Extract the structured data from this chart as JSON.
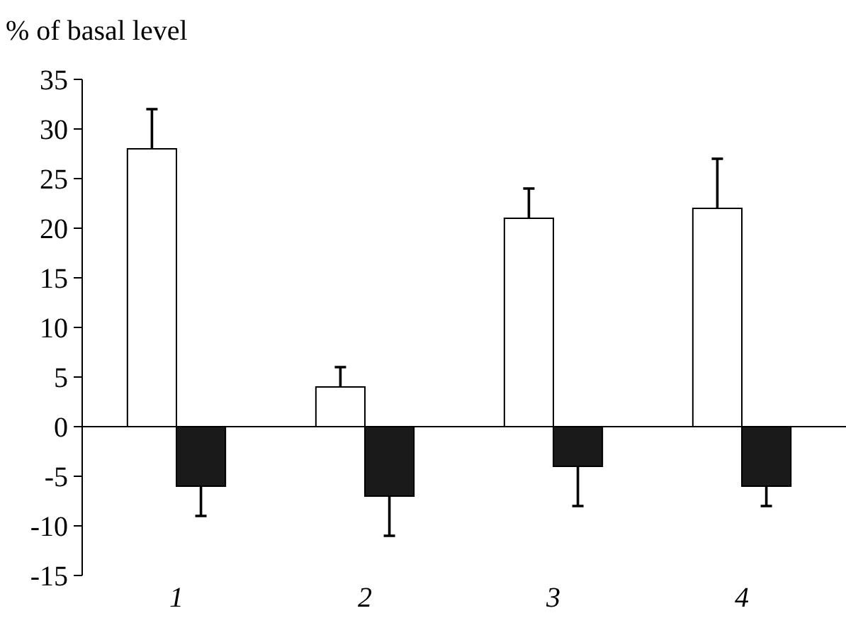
{
  "chart_data": {
    "type": "bar",
    "ylabel": "% of basal level",
    "categories": [
      "1",
      "2",
      "3",
      "4"
    ],
    "series": [
      {
        "color": "#ffffff",
        "values": [
          28,
          4,
          21,
          22
        ],
        "errors": [
          [
            28,
            32
          ],
          [
            4,
            6
          ],
          [
            21,
            24
          ],
          [
            22,
            27
          ]
        ]
      },
      {
        "color": "#1a1a1a",
        "values": [
          -6,
          -7,
          -4,
          -6
        ],
        "errors": [
          [
            -9,
            -6
          ],
          [
            -11,
            -7
          ],
          [
            -8,
            -4
          ],
          [
            -8,
            -6
          ]
        ]
      }
    ],
    "ylim": [
      -15,
      35
    ],
    "yticks": [
      -15,
      -10,
      -5,
      0,
      5,
      10,
      15,
      20,
      25,
      30,
      35
    ]
  }
}
